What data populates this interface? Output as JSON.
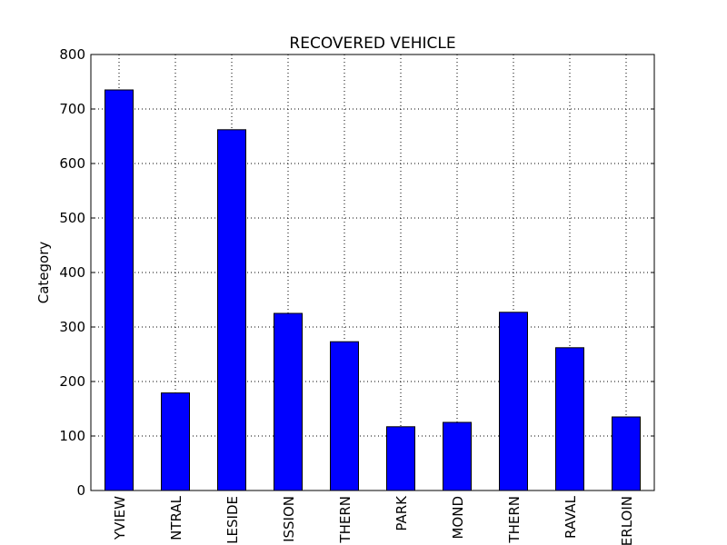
{
  "chart_data": {
    "type": "bar",
    "title": "RECOVERED VEHICLE",
    "y_label": "Category",
    "categories": [
      "YVIEW",
      "NTRAL",
      "LESIDE",
      "ISSION",
      "THERN",
      "PARK",
      "MOND",
      "THERN",
      "RAVAL",
      "ERLOIN"
    ],
    "values": [
      735,
      179,
      662,
      325,
      273,
      117,
      125,
      327,
      262,
      135
    ],
    "color": "#0000ff",
    "ylim": [
      0,
      800
    ],
    "yticks": [
      0,
      100,
      200,
      300,
      400,
      500,
      600,
      700,
      800
    ],
    "grid": true
  }
}
